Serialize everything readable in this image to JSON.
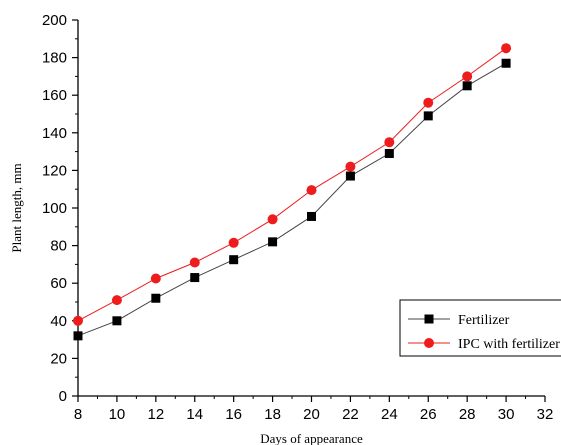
{
  "chart_data": {
    "type": "line",
    "xlabel": "Days of appearance",
    "ylabel": "Plant length, mm",
    "xlim": [
      8,
      32
    ],
    "ylim": [
      0,
      200
    ],
    "xticks": [
      8,
      10,
      12,
      14,
      16,
      18,
      20,
      22,
      24,
      26,
      28,
      30,
      32
    ],
    "yticks": [
      0,
      20,
      40,
      60,
      80,
      100,
      120,
      140,
      160,
      180,
      200
    ],
    "grid": false,
    "legend_position": "bottom-right",
    "x": [
      8,
      10,
      12,
      14,
      16,
      18,
      20,
      22,
      24,
      26,
      28,
      30
    ],
    "series": [
      {
        "name": "Fertilizer",
        "marker": "square",
        "color": "#000000",
        "line_color": "#444444",
        "values": [
          32,
          40,
          52,
          63,
          72.5,
          82,
          95.5,
          117,
          129,
          149,
          165,
          177
        ]
      },
      {
        "name": "IPC with fertilizer",
        "marker": "circle",
        "color": "#ee1c1c",
        "line_color": "#ee1c1c",
        "values": [
          40,
          51,
          62.5,
          71,
          81.5,
          94,
          109.5,
          122,
          135,
          156,
          170,
          185
        ]
      }
    ]
  }
}
